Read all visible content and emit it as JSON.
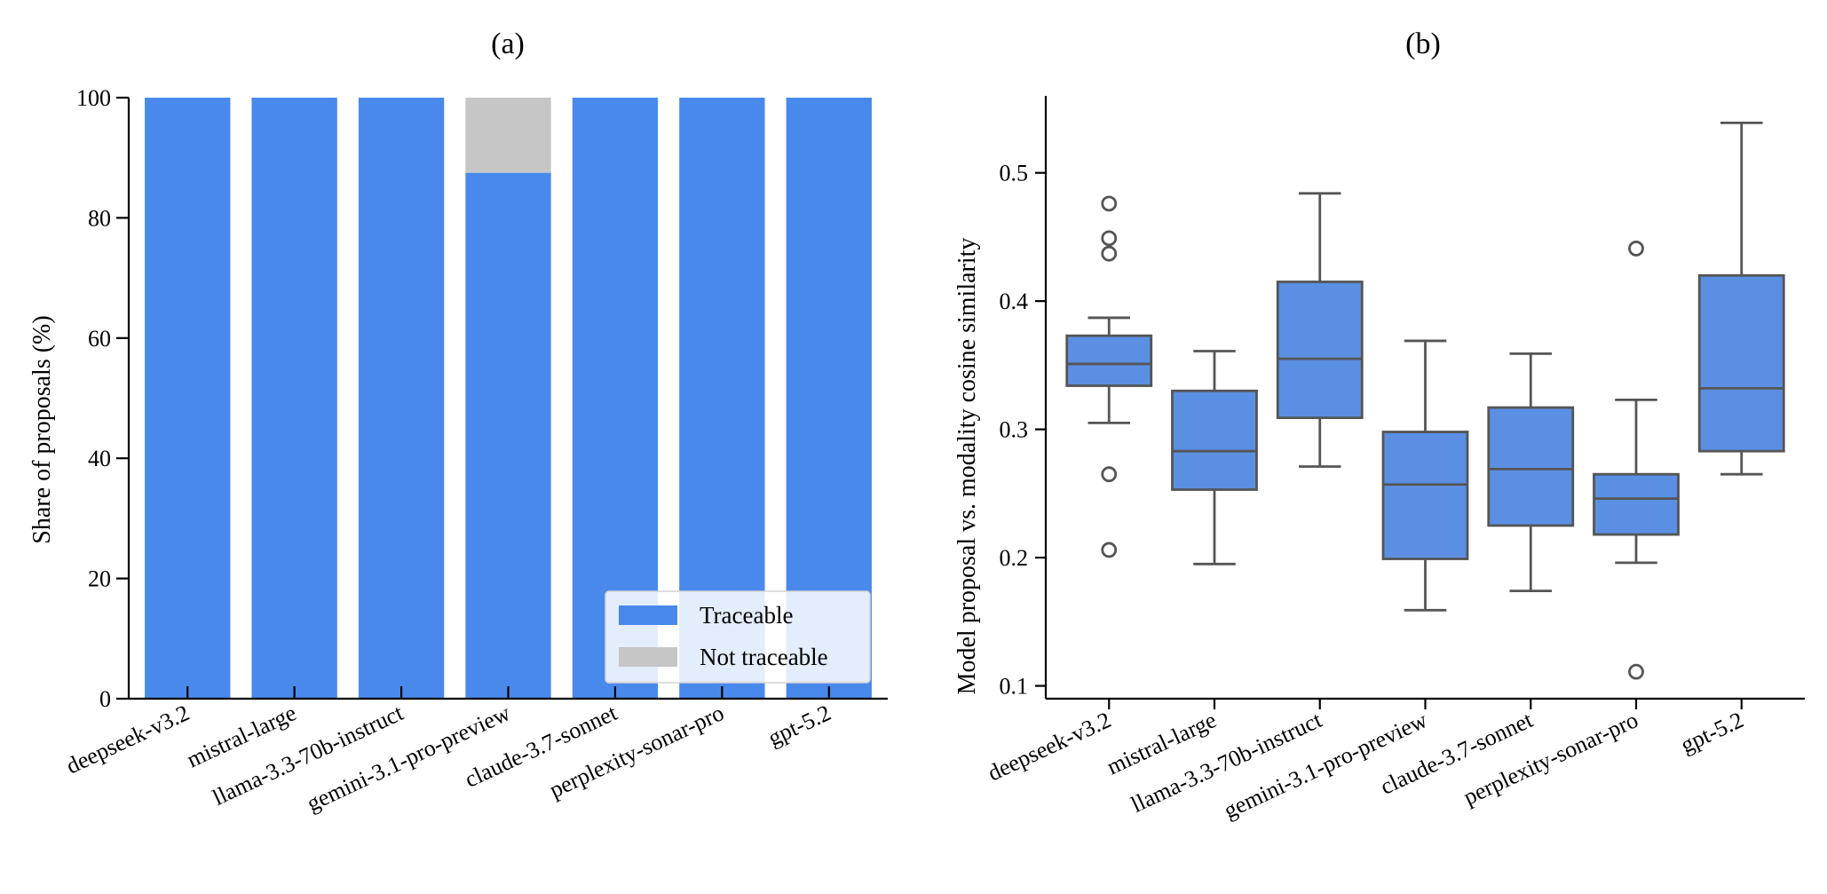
{
  "chart_data": [
    {
      "type": "bar",
      "stacked": true,
      "panel_label": "(a)",
      "title": "(a)",
      "xlabel": "",
      "ylabel": "Share of proposals (%)",
      "ylim": [
        0,
        100
      ],
      "yticks": [
        "0",
        "20",
        "40",
        "60",
        "80",
        "100"
      ],
      "categories": [
        "deepseek-v3.2",
        "mistral-large",
        "llama-3.3-70b-instruct",
        "gemini-3.1-pro-preview",
        "claude-3.7-sonnet",
        "perplexity-sonar-pro",
        "gpt-5.2"
      ],
      "series": [
        {
          "name": "Traceable",
          "color": "#4a89ec",
          "values": [
            100,
            100,
            100,
            87.5,
            100,
            100,
            100
          ]
        },
        {
          "name": "Not traceable",
          "color": "#c6c6c6",
          "values": [
            0,
            0,
            0,
            12.5,
            0,
            0,
            0
          ]
        }
      ],
      "legend": "lower-right",
      "grid": false
    },
    {
      "type": "box",
      "panel_label": "(b)",
      "title": "(b)",
      "xlabel": "",
      "ylabel": "Model proposal vs. modality cosine similarity",
      "ylim": [
        0.09,
        0.56
      ],
      "yticks": [
        "0.1",
        "0.2",
        "0.3",
        "0.4",
        "0.5"
      ],
      "color": "#5b8fe3",
      "categories": [
        "deepseek-v3.2",
        "mistral-large",
        "llama-3.3-70b-instruct",
        "gemini-3.1-pro-preview",
        "claude-3.7-sonnet",
        "perplexity-sonar-pro",
        "gpt-5.2"
      ],
      "boxes": [
        {
          "whisker_low": 0.305,
          "q1": 0.334,
          "median": 0.351,
          "q3": 0.373,
          "whisker_high": 0.387,
          "outliers": [
            0.476,
            0.449,
            0.437,
            0.265,
            0.206
          ]
        },
        {
          "whisker_low": 0.195,
          "q1": 0.253,
          "median": 0.283,
          "q3": 0.33,
          "whisker_high": 0.361,
          "outliers": []
        },
        {
          "whisker_low": 0.271,
          "q1": 0.309,
          "median": 0.355,
          "q3": 0.415,
          "whisker_high": 0.484,
          "outliers": []
        },
        {
          "whisker_low": 0.159,
          "q1": 0.199,
          "median": 0.257,
          "q3": 0.298,
          "whisker_high": 0.369,
          "outliers": []
        },
        {
          "whisker_low": 0.174,
          "q1": 0.225,
          "median": 0.269,
          "q3": 0.317,
          "whisker_high": 0.359,
          "outliers": []
        },
        {
          "whisker_low": 0.196,
          "q1": 0.218,
          "median": 0.246,
          "q3": 0.265,
          "whisker_high": 0.323,
          "outliers": [
            0.441,
            0.111
          ]
        },
        {
          "whisker_low": 0.265,
          "q1": 0.283,
          "median": 0.332,
          "q3": 0.42,
          "whisker_high": 0.539,
          "outliers": []
        }
      ],
      "grid": false
    }
  ]
}
